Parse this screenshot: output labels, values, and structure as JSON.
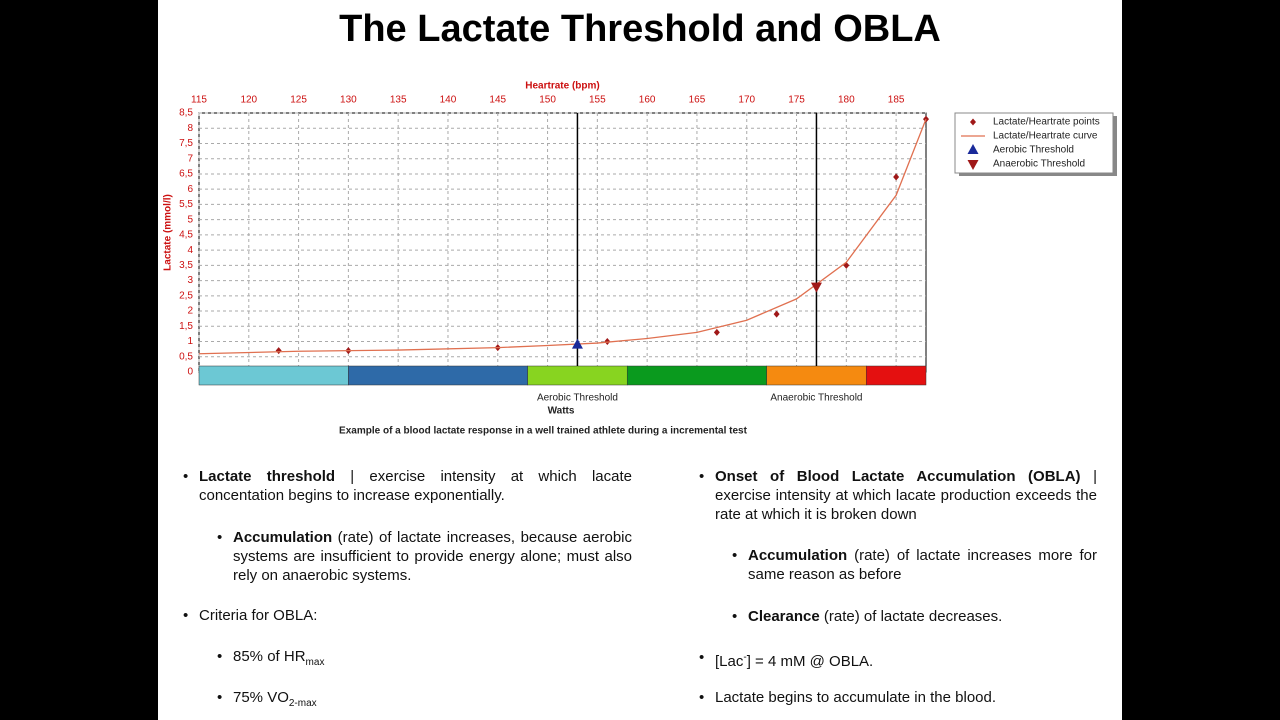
{
  "title": "The Lactate Threshold and OBLA",
  "chart_data": {
    "type": "line",
    "x_label": "Heartrate (bpm)",
    "y_label": "Lactate (mmol/l)",
    "bottom_label": "Watts",
    "caption": "Example of a blood lactate response in a well trained athlete during a incremental test",
    "xlim": [
      115,
      188
    ],
    "ylim": [
      0,
      8.5
    ],
    "xticks": [
      115,
      120,
      125,
      130,
      135,
      140,
      145,
      150,
      155,
      160,
      165,
      170,
      175,
      180,
      185
    ],
    "yticks": [
      0,
      {
        "value": 0.5,
        "label": "0,5"
      },
      1,
      {
        "value": 1.5,
        "label": "1,5"
      },
      2,
      {
        "value": 2.5,
        "label": "2,5"
      },
      3,
      {
        "value": 3.5,
        "label": "3,5"
      },
      4,
      {
        "value": 4.5,
        "label": "4,5"
      },
      5,
      {
        "value": 5.5,
        "label": "5,5"
      },
      6,
      {
        "value": 6.5,
        "label": "6,5"
      },
      7,
      {
        "value": 7.5,
        "label": "7,5"
      },
      8,
      {
        "value": 8.5,
        "label": "8,5"
      }
    ],
    "grid": true,
    "series": [
      {
        "name": "Lactate/Heartrate points",
        "color": "#a01818",
        "marker": "diamond",
        "x": [
          123,
          130,
          145,
          156,
          167,
          173,
          180,
          185,
          188
        ],
        "y": [
          0.7,
          0.7,
          0.8,
          1.0,
          1.3,
          1.9,
          3.5,
          6.4,
          8.3
        ]
      },
      {
        "name": "Lactate/Heartrate curve",
        "color": "#e07050",
        "marker": "line",
        "x": [
          115,
          125,
          135,
          145,
          150,
          155,
          160,
          165,
          170,
          175,
          180,
          185,
          188
        ],
        "y": [
          0.6,
          0.68,
          0.72,
          0.8,
          0.87,
          0.95,
          1.1,
          1.3,
          1.7,
          2.4,
          3.6,
          5.8,
          8.3
        ]
      },
      {
        "name": "Aerobic Threshold",
        "color": "#1a2a9a",
        "marker": "triangle-up",
        "x": [
          153
        ],
        "y": [
          0.9
        ]
      },
      {
        "name": "Anaerobic Threshold",
        "color": "#a01818",
        "marker": "triangle-down",
        "x": [
          177
        ],
        "y": [
          2.8
        ]
      }
    ],
    "zones": [
      {
        "from": 115,
        "to": 130,
        "color": "#6cc8d4"
      },
      {
        "from": 130,
        "to": 148,
        "color": "#2e6aa8"
      },
      {
        "from": 148,
        "to": 158,
        "color": "#88d420"
      },
      {
        "from": 158,
        "to": 172,
        "color": "#0a9a1e"
      },
      {
        "from": 172,
        "to": 182,
        "color": "#f58a10"
      },
      {
        "from": 182,
        "to": 188,
        "color": "#e41010"
      }
    ]
  },
  "notes": {
    "left": [
      {
        "bold": "Lactate threshold",
        "text": " | exercise intensity at which lacate concentation begins to increase exponentially."
      },
      {
        "bold": "Accumulation",
        "text": " (rate) of lactate increases, because aerobic systems are insufficient to provide energy alone; must also rely on anaerobic systems."
      },
      {
        "text": "Criteria for OBLA:"
      },
      {
        "text": "85% of HR",
        "sub": "max"
      },
      {
        "text": "75% VO",
        "sub": "2-max"
      }
    ],
    "right": [
      {
        "bold": "Onset of Blood Lactate Accumulation (OBLA)",
        "text": " | exercise intensity at which lacate production exceeds the rate at which it is broken down"
      },
      {
        "bold": "Accumulation",
        "text": " (rate) of lactate increases more for same reason as before"
      },
      {
        "bold": "Clearance",
        "text": " (rate) of lactate decreases."
      },
      {
        "text": "[Lac",
        "sup": "-",
        "after": "] = 4 mM @ OBLA."
      },
      {
        "text": "Lactate begins to accumulate in the blood."
      }
    ]
  }
}
